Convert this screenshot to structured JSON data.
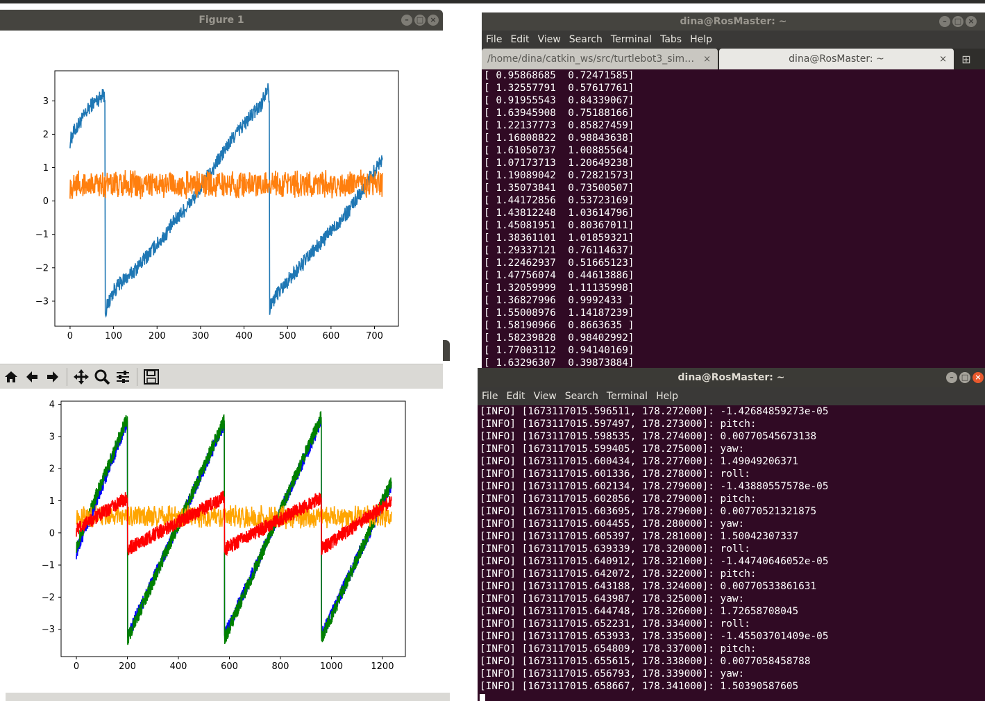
{
  "figure_window": {
    "title": "Figure 1",
    "chart_data": {
      "type": "line",
      "xlim": [
        -35,
        755
      ],
      "ylim": [
        -3.75,
        3.9
      ],
      "x_ticks": [
        "0",
        "100",
        "200",
        "300",
        "400",
        "500",
        "600",
        "700"
      ],
      "y_ticks": [
        "3",
        "2",
        "1",
        "0",
        "−1",
        "−2",
        "−3"
      ],
      "series": [
        {
          "color": "#1f77b4",
          "x": [
            0,
            10,
            20,
            30,
            40,
            50,
            60,
            70,
            75,
            80,
            81,
            90,
            100,
            120,
            140,
            160,
            180,
            200,
            220,
            240,
            260,
            280,
            300,
            320,
            340,
            360,
            380,
            400,
            420,
            440,
            455,
            458,
            459,
            470,
            480,
            500,
            520,
            540,
            560,
            580,
            600,
            620,
            640,
            660,
            680,
            700,
            718
          ],
          "y": [
            1.8,
            2.1,
            2.3,
            2.5,
            2.7,
            2.9,
            3.0,
            3.1,
            3.3,
            3.0,
            -3.3,
            -3.0,
            -2.7,
            -2.4,
            -2.2,
            -1.9,
            -1.6,
            -1.3,
            -1.0,
            -0.6,
            -0.3,
            0.0,
            0.4,
            0.8,
            1.2,
            1.6,
            2.0,
            2.3,
            2.6,
            2.9,
            3.5,
            3.0,
            -3.2,
            -2.9,
            -2.7,
            -2.4,
            -2.1,
            -1.8,
            -1.5,
            -1.2,
            -0.9,
            -0.6,
            -0.3,
            0.1,
            0.5,
            0.9,
            1.3
          ]
        },
        {
          "color": "#ff7f0e",
          "x": [
            0,
            718
          ],
          "y": [
            0.5,
            0.5
          ],
          "noise": 0.35
        }
      ]
    }
  },
  "figure2": {
    "toolbar_icons": [
      "home-icon",
      "back-arrow-icon",
      "forward-arrow-icon",
      "pan-icon",
      "zoom-icon",
      "configure-subplots-icon",
      "save-icon"
    ],
    "chart_data": {
      "type": "line",
      "xlim": [
        -60,
        1290
      ],
      "ylim": [
        -3.85,
        4.1
      ],
      "x_ticks": [
        "0",
        "200",
        "400",
        "600",
        "800",
        "1000",
        "1200"
      ],
      "y_ticks": [
        "4",
        "3",
        "2",
        "1",
        "0",
        "−1",
        "−2",
        "−3"
      ],
      "series": [
        {
          "color": "#0000ff",
          "x": [
            0,
            200,
            201,
            580,
            581,
            960,
            961,
            1235
          ],
          "y": [
            -0.6,
            3.5,
            -3.2,
            3.4,
            -3.2,
            3.5,
            -3.2,
            1.5
          ]
        },
        {
          "color": "#008000",
          "x": [
            0,
            200,
            201,
            580,
            581,
            960,
            961,
            1235
          ],
          "y": [
            -0.4,
            3.6,
            -3.3,
            3.5,
            -3.3,
            3.6,
            -3.3,
            1.6
          ]
        },
        {
          "color": "#ffa500",
          "x": [
            0,
            1235
          ],
          "y": [
            0.5,
            0.5
          ],
          "noise": 0.3
        },
        {
          "color": "#ff0000",
          "x": [
            0,
            200,
            201,
            580,
            581,
            960,
            961,
            1235
          ],
          "y": [
            0.1,
            1.1,
            -0.5,
            1.1,
            -0.5,
            1.1,
            -0.5,
            1.0
          ]
        }
      ]
    }
  },
  "terminal1": {
    "title": "dina@RosMaster: ~",
    "menu": [
      "File",
      "Edit",
      "View",
      "Search",
      "Terminal",
      "Tabs",
      "Help"
    ],
    "tabs": [
      {
        "label": "/home/dina/catkin_ws/src/turtlebot3_sim…"
      },
      {
        "label": "dina@RosMaster: ~"
      }
    ],
    "lines": [
      "[ 0.95868685  0.72471585]",
      "[ 1.32557791  0.57617761]",
      "[ 0.91955543  0.84339067]",
      "[ 1.63945908  0.75188166]",
      "[ 1.22137773  0.85827459]",
      "[ 1.16808822  0.98843638]",
      "[ 1.61050737  1.00885564]",
      "[ 1.07173713  1.20649238]",
      "[ 1.19089042  0.72821573]",
      "[ 1.35073841  0.73500507]",
      "[ 1.44172856  0.53723169]",
      "[ 1.43812248  1.03614796]",
      "[ 1.45081951  0.80367011]",
      "[ 1.38361101  1.01859321]",
      "[ 1.29337121  0.76114637]",
      "[ 1.22462937  0.51665123]",
      "[ 1.47756074  0.44613886]",
      "[ 1.32059999  1.11135998]",
      "[ 1.36827996  0.9992433 ]",
      "[ 1.55008976  1.14187239]",
      "[ 1.58190966  0.8663635 ]",
      "[ 1.58239828  0.98402992]",
      "[ 1.77003112  0.94140169]",
      "[ 1.63296307  0.39873884]"
    ]
  },
  "terminal2": {
    "title": "dina@RosMaster: ~",
    "menu": [
      "File",
      "Edit",
      "View",
      "Search",
      "Terminal",
      "Help"
    ],
    "lines": [
      "[INFO] [1673117015.596511, 178.272000]: -1.42684859273e-05",
      "[INFO] [1673117015.597497, 178.273000]: pitch:",
      "[INFO] [1673117015.598535, 178.274000]: 0.00770545673138",
      "[INFO] [1673117015.599405, 178.275000]: yaw:",
      "[INFO] [1673117015.600434, 178.277000]: 1.49049206371",
      "[INFO] [1673117015.601336, 178.278000]: roll:",
      "[INFO] [1673117015.602134, 178.279000]: -1.43880557578e-05",
      "[INFO] [1673117015.602856, 178.279000]: pitch:",
      "[INFO] [1673117015.603695, 178.279000]: 0.00770521321875",
      "[INFO] [1673117015.604455, 178.280000]: yaw:",
      "[INFO] [1673117015.605397, 178.281000]: 1.50042307337",
      "[INFO] [1673117015.639339, 178.320000]: roll:",
      "[INFO] [1673117015.640912, 178.321000]: -1.44740646052e-05",
      "[INFO] [1673117015.642072, 178.322000]: pitch:",
      "[INFO] [1673117015.643188, 178.324000]: 0.00770533861631",
      "[INFO] [1673117015.643987, 178.325000]: yaw:",
      "[INFO] [1673117015.644748, 178.326000]: 1.72658708045",
      "[INFO] [1673117015.652231, 178.334000]: roll:",
      "[INFO] [1673117015.653933, 178.335000]: -1.45503701409e-05",
      "[INFO] [1673117015.654809, 178.337000]: pitch:",
      "[INFO] [1673117015.655615, 178.338000]: 0.0077058458788",
      "[INFO] [1673117015.656793, 178.339000]: yaw:",
      "[INFO] [1673117015.658667, 178.341000]: 1.50390587605"
    ]
  }
}
